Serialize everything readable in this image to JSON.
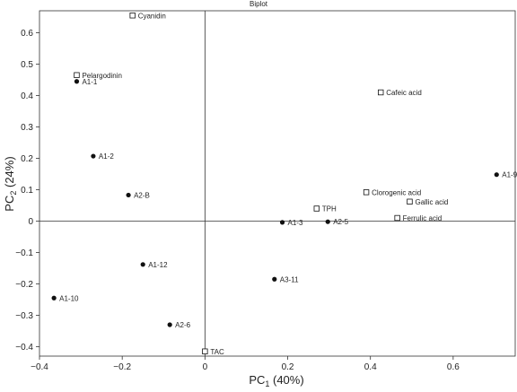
{
  "chart_data": {
    "type": "scatter",
    "title": "Biplot",
    "xlabel": {
      "base": "PC",
      "sub": "1",
      "rest": " (40%)"
    },
    "ylabel": {
      "base": "PC",
      "sub": "2",
      "rest": " (24%)"
    },
    "xlim": [
      -0.4,
      0.75
    ],
    "ylim": [
      -0.43,
      0.67
    ],
    "xticks": [
      "−0.4",
      "−0.2",
      "0",
      "0.2",
      "0.4",
      "0.6"
    ],
    "xtick_values": [
      -0.4,
      -0.2,
      0,
      0.2,
      0.4,
      0.6
    ],
    "yticks": [
      "0.6",
      "0.5",
      "0.4",
      "0.3",
      "0.2",
      "0.1",
      "0",
      "−0.1",
      "−0.2",
      "−0.3",
      "−0.4"
    ],
    "ytick_values": [
      0.6,
      0.5,
      0.4,
      0.3,
      0.2,
      0.1,
      0,
      -0.1,
      -0.2,
      -0.3,
      -0.4
    ],
    "grid": false,
    "series": [
      {
        "marker": "filled-circle",
        "points": [
          {
            "label": "A1-1",
            "x": -0.31,
            "y": 0.445
          },
          {
            "label": "A1-2",
            "x": -0.27,
            "y": 0.207
          },
          {
            "label": "A2-B",
            "x": -0.185,
            "y": 0.083
          },
          {
            "label": "A1-3",
            "x": 0.187,
            "y": -0.004
          },
          {
            "label": "A2-5",
            "x": 0.297,
            "y": -0.002
          },
          {
            "label": "A1-9",
            "x": 0.705,
            "y": 0.148
          },
          {
            "label": "A1-12",
            "x": -0.15,
            "y": -0.138
          },
          {
            "label": "A3-11",
            "x": 0.168,
            "y": -0.185
          },
          {
            "label": "A1-10",
            "x": -0.365,
            "y": -0.245
          },
          {
            "label": "A2-6",
            "x": -0.085,
            "y": -0.33
          }
        ]
      },
      {
        "marker": "open-square",
        "points": [
          {
            "label": "Cyanidin",
            "x": -0.175,
            "y": 0.655
          },
          {
            "label": "Pelargodinin",
            "x": -0.31,
            "y": 0.465
          },
          {
            "label": "Cafeic acid",
            "x": 0.425,
            "y": 0.41
          },
          {
            "label": "TPH",
            "x": 0.27,
            "y": 0.04
          },
          {
            "label": "Clorogenic acid",
            "x": 0.39,
            "y": 0.092
          },
          {
            "label": "Gallic acid",
            "x": 0.495,
            "y": 0.062
          },
          {
            "label": "Ferrulic acid",
            "x": 0.465,
            "y": 0.01
          },
          {
            "label": "TAC",
            "x": 0,
            "y": -0.415
          }
        ]
      }
    ]
  }
}
